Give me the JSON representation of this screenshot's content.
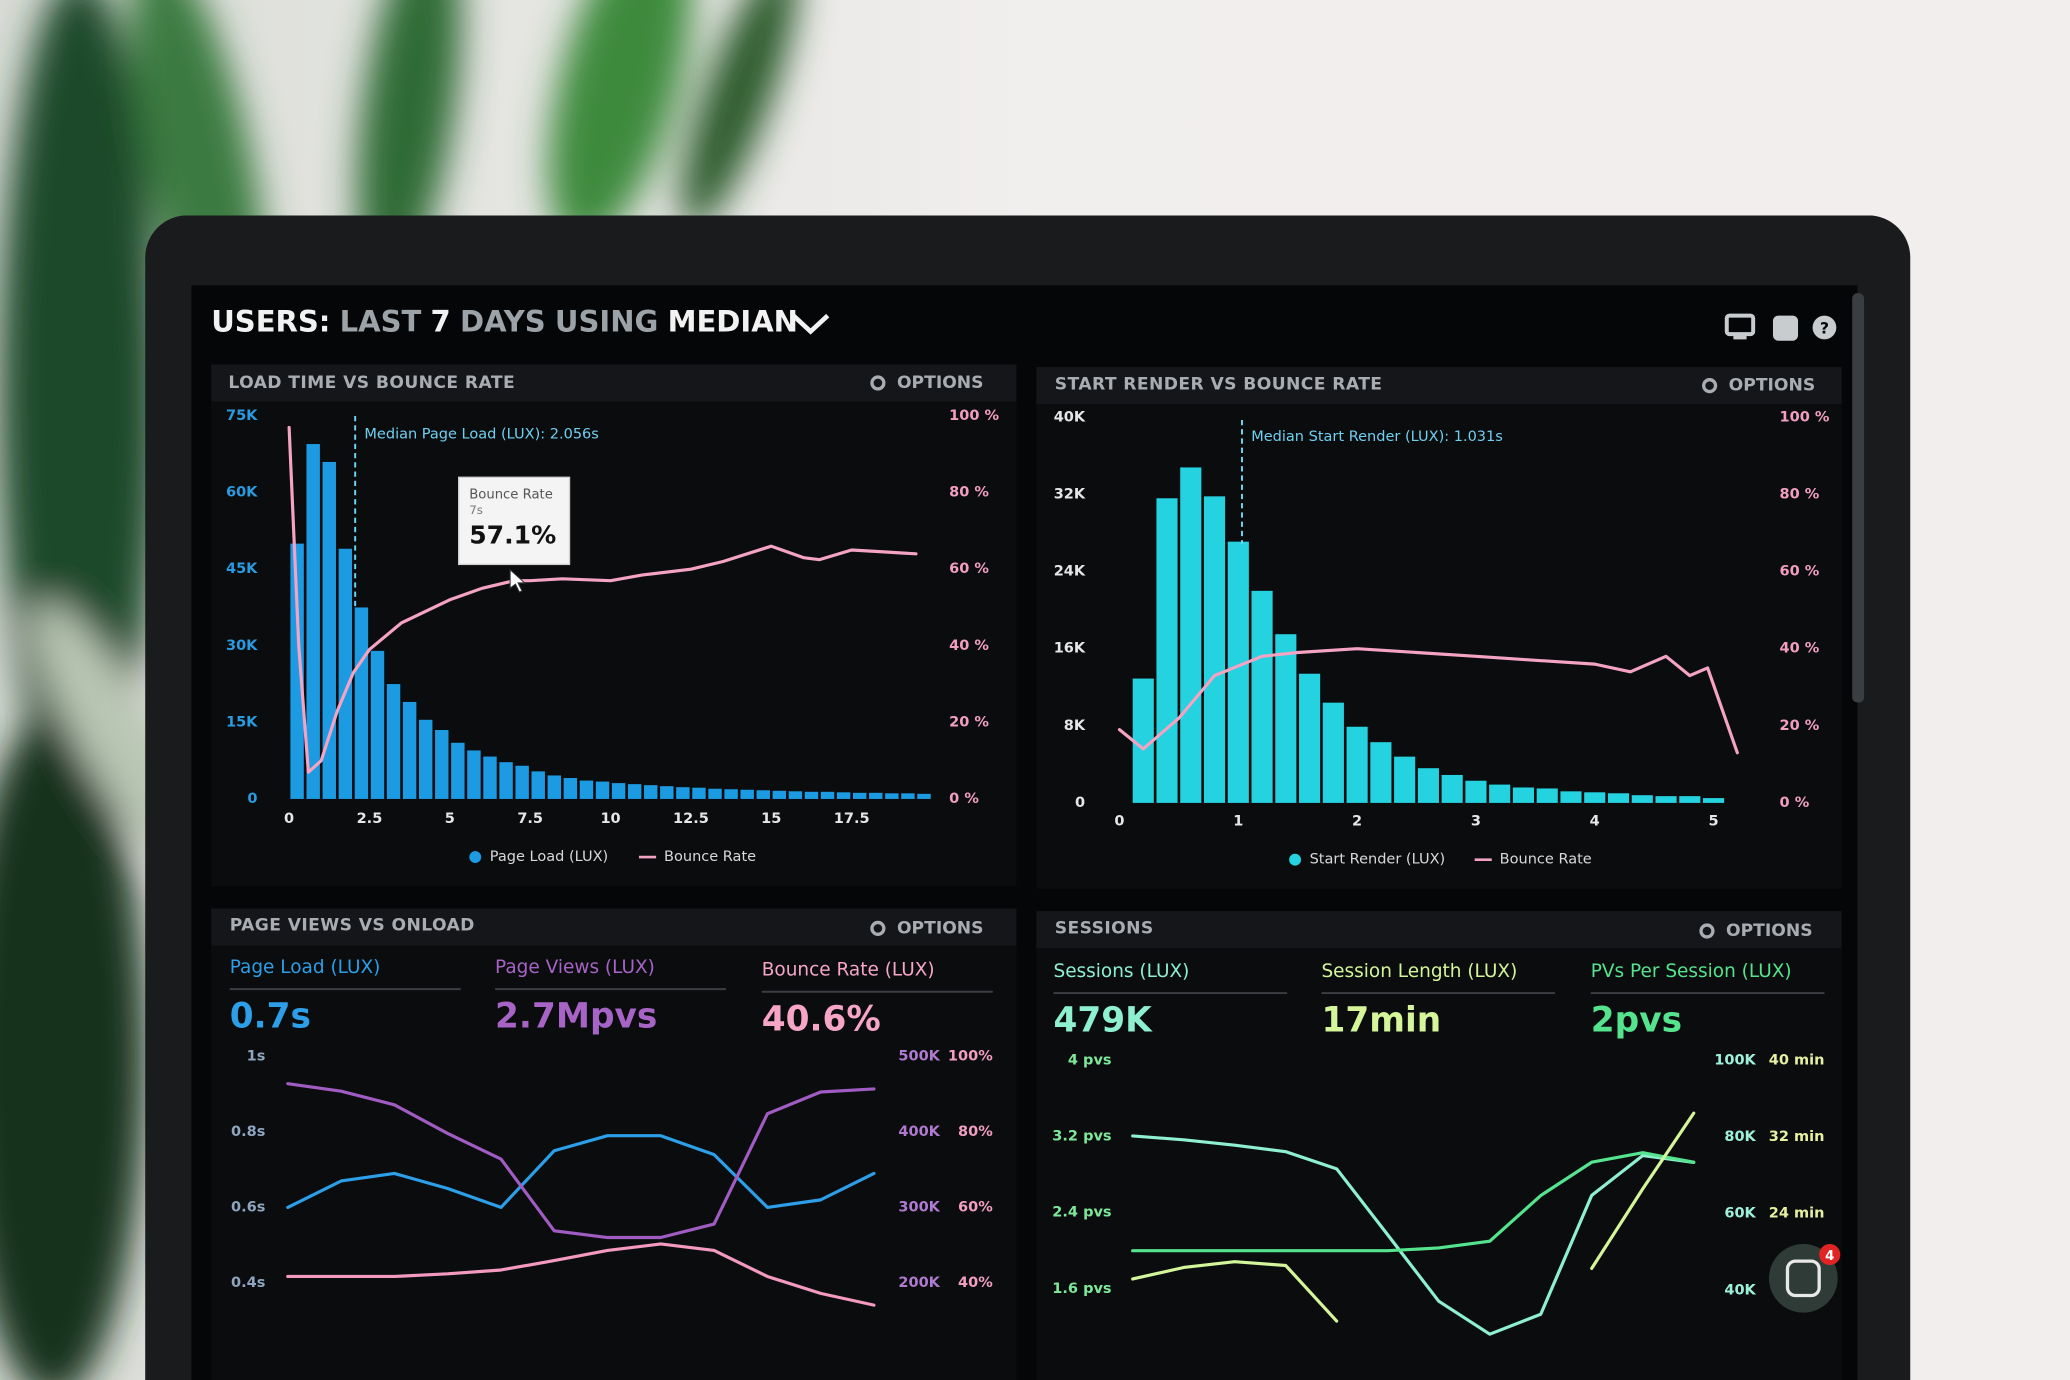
{
  "header": {
    "title_parts": [
      "USERS:",
      "LAST",
      "7",
      "DAYS",
      "USING",
      "MEDIAN"
    ]
  },
  "chat_badge": 4,
  "chart_data": [
    {
      "type": "histogram",
      "title": "LOAD TIME VS BOUNCE RATE",
      "options": "OPTIONS",
      "bins": [
        0,
        0.5,
        1,
        1.5,
        2,
        2.5,
        3,
        3.5,
        4,
        4.5,
        5,
        5.5,
        6,
        6.5,
        7,
        7.5,
        8,
        8.5,
        9,
        9.5,
        10,
        10.5,
        11,
        11.5,
        12,
        12.5,
        13,
        13.5,
        14,
        14.5,
        15,
        15.5,
        16,
        16.5,
        17,
        17.5,
        18,
        18.5,
        19,
        19.5,
        20
      ],
      "xlim": [
        -0.2,
        20
      ],
      "xticks": [
        0,
        2.5,
        5,
        7.5,
        10,
        12.5,
        15,
        17.5
      ],
      "ylim": [
        0,
        75000
      ],
      "yticks": [
        0,
        {
          "value": 15000,
          "label": "15K"
        },
        {
          "value": 30000,
          "label": "30K"
        },
        {
          "value": 45000,
          "label": "45K"
        },
        {
          "value": 60000,
          "label": "60K"
        },
        {
          "value": 75000,
          "label": "75K"
        }
      ],
      "y2lim": [
        0,
        100
      ],
      "y2ticks": [
        {
          "value": 0,
          "label": "0 %"
        },
        {
          "value": 20,
          "label": "20 %"
        },
        {
          "value": 40,
          "label": "40 %"
        },
        {
          "value": 60,
          "label": "60 %"
        },
        {
          "value": 80,
          "label": "80 %"
        },
        {
          "value": 100,
          "label": "100 %"
        }
      ],
      "series": [
        {
          "name": "Page Load (LUX)",
          "color": "#1c9be2",
          "values": [
            50000,
            69500,
            66000,
            49000,
            37500,
            29000,
            22500,
            19000,
            15500,
            13500,
            11000,
            9500,
            8300,
            7200,
            6500,
            5400,
            4600,
            4100,
            3600,
            3400,
            3100,
            2900,
            2700,
            2500,
            2300,
            2200,
            2000,
            1900,
            1800,
            1700,
            1600,
            1500,
            1400,
            1400,
            1300,
            1200,
            1200,
            1100,
            1100,
            1000
          ]
        },
        {
          "name": "Bounce Rate",
          "color": "#f4a3c3",
          "axis": "y2",
          "x": [
            0,
            0.3,
            0.6,
            1,
            1.5,
            2,
            2.5,
            3.5,
            5,
            6,
            7,
            7.5,
            8.5,
            10,
            11,
            12.5,
            13.5,
            15,
            16,
            16.5,
            17.5,
            18.5,
            19.5
          ],
          "values": [
            97,
            40,
            7,
            10,
            23,
            33,
            39,
            46,
            52,
            55,
            57,
            57,
            57.5,
            57,
            58.5,
            60,
            62,
            66,
            63,
            62.5,
            65,
            64.5,
            64
          ]
        }
      ],
      "annotations": [
        {
          "text": "Median Page Load (LUX): 2.056s",
          "x": 2.056
        }
      ],
      "tooltip": {
        "title": "Bounce Rate",
        "x": 7,
        "x_label": "7s",
        "value": 57.1,
        "value_label": "57.1%"
      }
    },
    {
      "type": "histogram",
      "title": "START RENDER VS BOUNCE RATE",
      "options": "OPTIONS",
      "bins": [
        0.1,
        0.3,
        0.5,
        0.7,
        0.9,
        1.1,
        1.3,
        1.5,
        1.7,
        1.9,
        2.1,
        2.3,
        2.5,
        2.7,
        2.9,
        3.1,
        3.3,
        3.5,
        3.7,
        3.9,
        4.1,
        4.3,
        4.5,
        4.7,
        4.9,
        5.1
      ],
      "xlim": [
        -0.05,
        5.25
      ],
      "xticks": [
        0,
        1,
        2,
        3,
        4,
        5
      ],
      "ylim": [
        0,
        40000
      ],
      "yticks": [
        0,
        {
          "value": 8000,
          "label": "8K"
        },
        {
          "value": 16000,
          "label": "16K"
        },
        {
          "value": 24000,
          "label": "24K"
        },
        {
          "value": 32000,
          "label": "32K"
        },
        {
          "value": 40000,
          "label": "40K"
        }
      ],
      "y2lim": [
        0,
        100
      ],
      "y2ticks": [
        {
          "value": 0,
          "label": "0 %"
        },
        {
          "value": 20,
          "label": "20 %"
        },
        {
          "value": 40,
          "label": "40 %"
        },
        {
          "value": 60,
          "label": "60 %"
        },
        {
          "value": 80,
          "label": "80 %"
        },
        {
          "value": 100,
          "label": "100 %"
        }
      ],
      "series": [
        {
          "name": "Start Render (LUX)",
          "color": "#25d2df",
          "values": [
            12900,
            31600,
            34800,
            31800,
            27100,
            22000,
            17500,
            13400,
            10400,
            7900,
            6300,
            4800,
            3600,
            2900,
            2300,
            1900,
            1600,
            1500,
            1200,
            1100,
            1000,
            800,
            700,
            700,
            500
          ]
        },
        {
          "name": "Bounce Rate",
          "color": "#f4a3c3",
          "axis": "y2",
          "x": [
            0,
            0.2,
            0.5,
            0.8,
            1.2,
            1.5,
            2,
            2.5,
            3,
            3.5,
            4,
            4.3,
            4.6,
            4.8,
            4.95,
            5.2
          ],
          "values": [
            19,
            14,
            22,
            33,
            38,
            39,
            40,
            39,
            38,
            37,
            36,
            34,
            38,
            33,
            35,
            13
          ]
        }
      ],
      "annotations": [
        {
          "text": "Median Start Render (LUX): 1.031s",
          "x": 1.031
        }
      ]
    },
    {
      "type": "line",
      "title": "PAGE VIEWS VS ONLOAD",
      "options": "OPTIONS",
      "metrics": [
        {
          "label": "Page Load (LUX)",
          "value": "0.7s",
          "color": "#2c9fe8"
        },
        {
          "label": "Page Views (LUX)",
          "value": "2.7Mpvs",
          "color": "#a763c6"
        },
        {
          "label": "Bounce Rate (LUX)",
          "value": "40.6%",
          "color": "#f6a5c6"
        }
      ],
      "categories": [
        null,
        null,
        null,
        null,
        null,
        null,
        null,
        null,
        null,
        null,
        null,
        null
      ],
      "ylim": [
        0.3,
        1
      ],
      "yticks": [
        {
          "value": 1,
          "label": "1s"
        },
        {
          "value": 0.8,
          "label": "0.8s"
        },
        {
          "value": 0.6,
          "label": "0.6s"
        },
        {
          "value": 0.4,
          "label": "0.4s"
        }
      ],
      "y2lim": [
        150000,
        500000
      ],
      "y2ticks": [
        {
          "value": 500000,
          "label": "500K"
        },
        {
          "value": 400000,
          "label": "400K"
        },
        {
          "value": 300000,
          "label": "300K"
        },
        {
          "value": 200000,
          "label": "200K"
        }
      ],
      "y3lim": [
        30,
        100
      ],
      "y3ticks": [
        {
          "value": 100,
          "label": "100%"
        },
        {
          "value": 80,
          "label": "80%"
        },
        {
          "value": 60,
          "label": "60%"
        },
        {
          "value": 40,
          "label": "40%"
        }
      ],
      "series": [
        {
          "color": "#2c9fe8",
          "axis": "y",
          "values": [
            0.6,
            0.67,
            0.69,
            0.65,
            0.6,
            0.75,
            0.79,
            0.79,
            0.74,
            0.6,
            0.62,
            0.69
          ]
        },
        {
          "color": "#a05cc2",
          "axis": "y2",
          "values": [
            464000,
            454000,
            436000,
            398000,
            364000,
            269000,
            260000,
            260000,
            278000,
            424000,
            453000,
            457000
          ]
        },
        {
          "color": "#f49ac0",
          "axis": "y3",
          "values": [
            41.7,
            41.7,
            41.7,
            42.4,
            43.4,
            45.9,
            48.6,
            50.3,
            48.6,
            41.7,
            37.2,
            34.1
          ]
        }
      ]
    },
    {
      "type": "line",
      "title": "SESSIONS",
      "options": "OPTIONS",
      "metrics": [
        {
          "label": "Sessions (LUX)",
          "value": "479K",
          "color": "#8ef0cf"
        },
        {
          "label": "Session Length (LUX)",
          "value": "17min",
          "color": "#d4f59a"
        },
        {
          "label": "PVs Per Session (LUX)",
          "value": "2pvs",
          "color": "#55e38e"
        }
      ],
      "categories": [
        null,
        null,
        null,
        null,
        null,
        null,
        null,
        null,
        null,
        null,
        null,
        null
      ],
      "ylim": [
        1.1,
        4
      ],
      "yticks": [
        {
          "value": 4,
          "label": "4 pvs"
        },
        {
          "value": 3.2,
          "label": "3.2 pvs"
        },
        {
          "value": 2.4,
          "label": "2.4 pvs"
        },
        {
          "value": 1.6,
          "label": "1.6 pvs"
        }
      ],
      "y2lim": [
        28000,
        100000
      ],
      "y2ticks": [
        {
          "value": 100000,
          "label": "100K"
        },
        {
          "value": 80000,
          "label": "80K"
        },
        {
          "value": 60000,
          "label": "60K"
        },
        {
          "value": 40000,
          "label": "40K"
        }
      ],
      "y3lim": [
        11.2,
        40
      ],
      "y3ticks": [
        {
          "value": 40,
          "label": "40 min"
        },
        {
          "value": 32,
          "label": "32 min"
        },
        {
          "value": 24,
          "label": "24 min"
        }
      ],
      "series": [
        {
          "color": "#8ef0cf",
          "axis": "y2",
          "values": [
            80300,
            79300,
            77900,
            76200,
            71700,
            54500,
            37200,
            28600,
            33800,
            64800,
            75200,
            73400
          ]
        },
        {
          "color": "#55e38e",
          "axis": "y",
          "values": [
            2.0,
            2.0,
            2.0,
            2.0,
            2.0,
            2.0,
            2.03,
            2.1,
            2.58,
            2.93,
            3.03,
            2.93
          ]
        },
        {
          "color": "#d4f59a",
          "axis": "y3",
          "values": [
            17.2,
            18.4,
            19.0,
            18.6,
            12.8,
            null,
            null,
            null,
            null,
            18.3,
            26.6,
            34.5
          ]
        }
      ]
    }
  ]
}
